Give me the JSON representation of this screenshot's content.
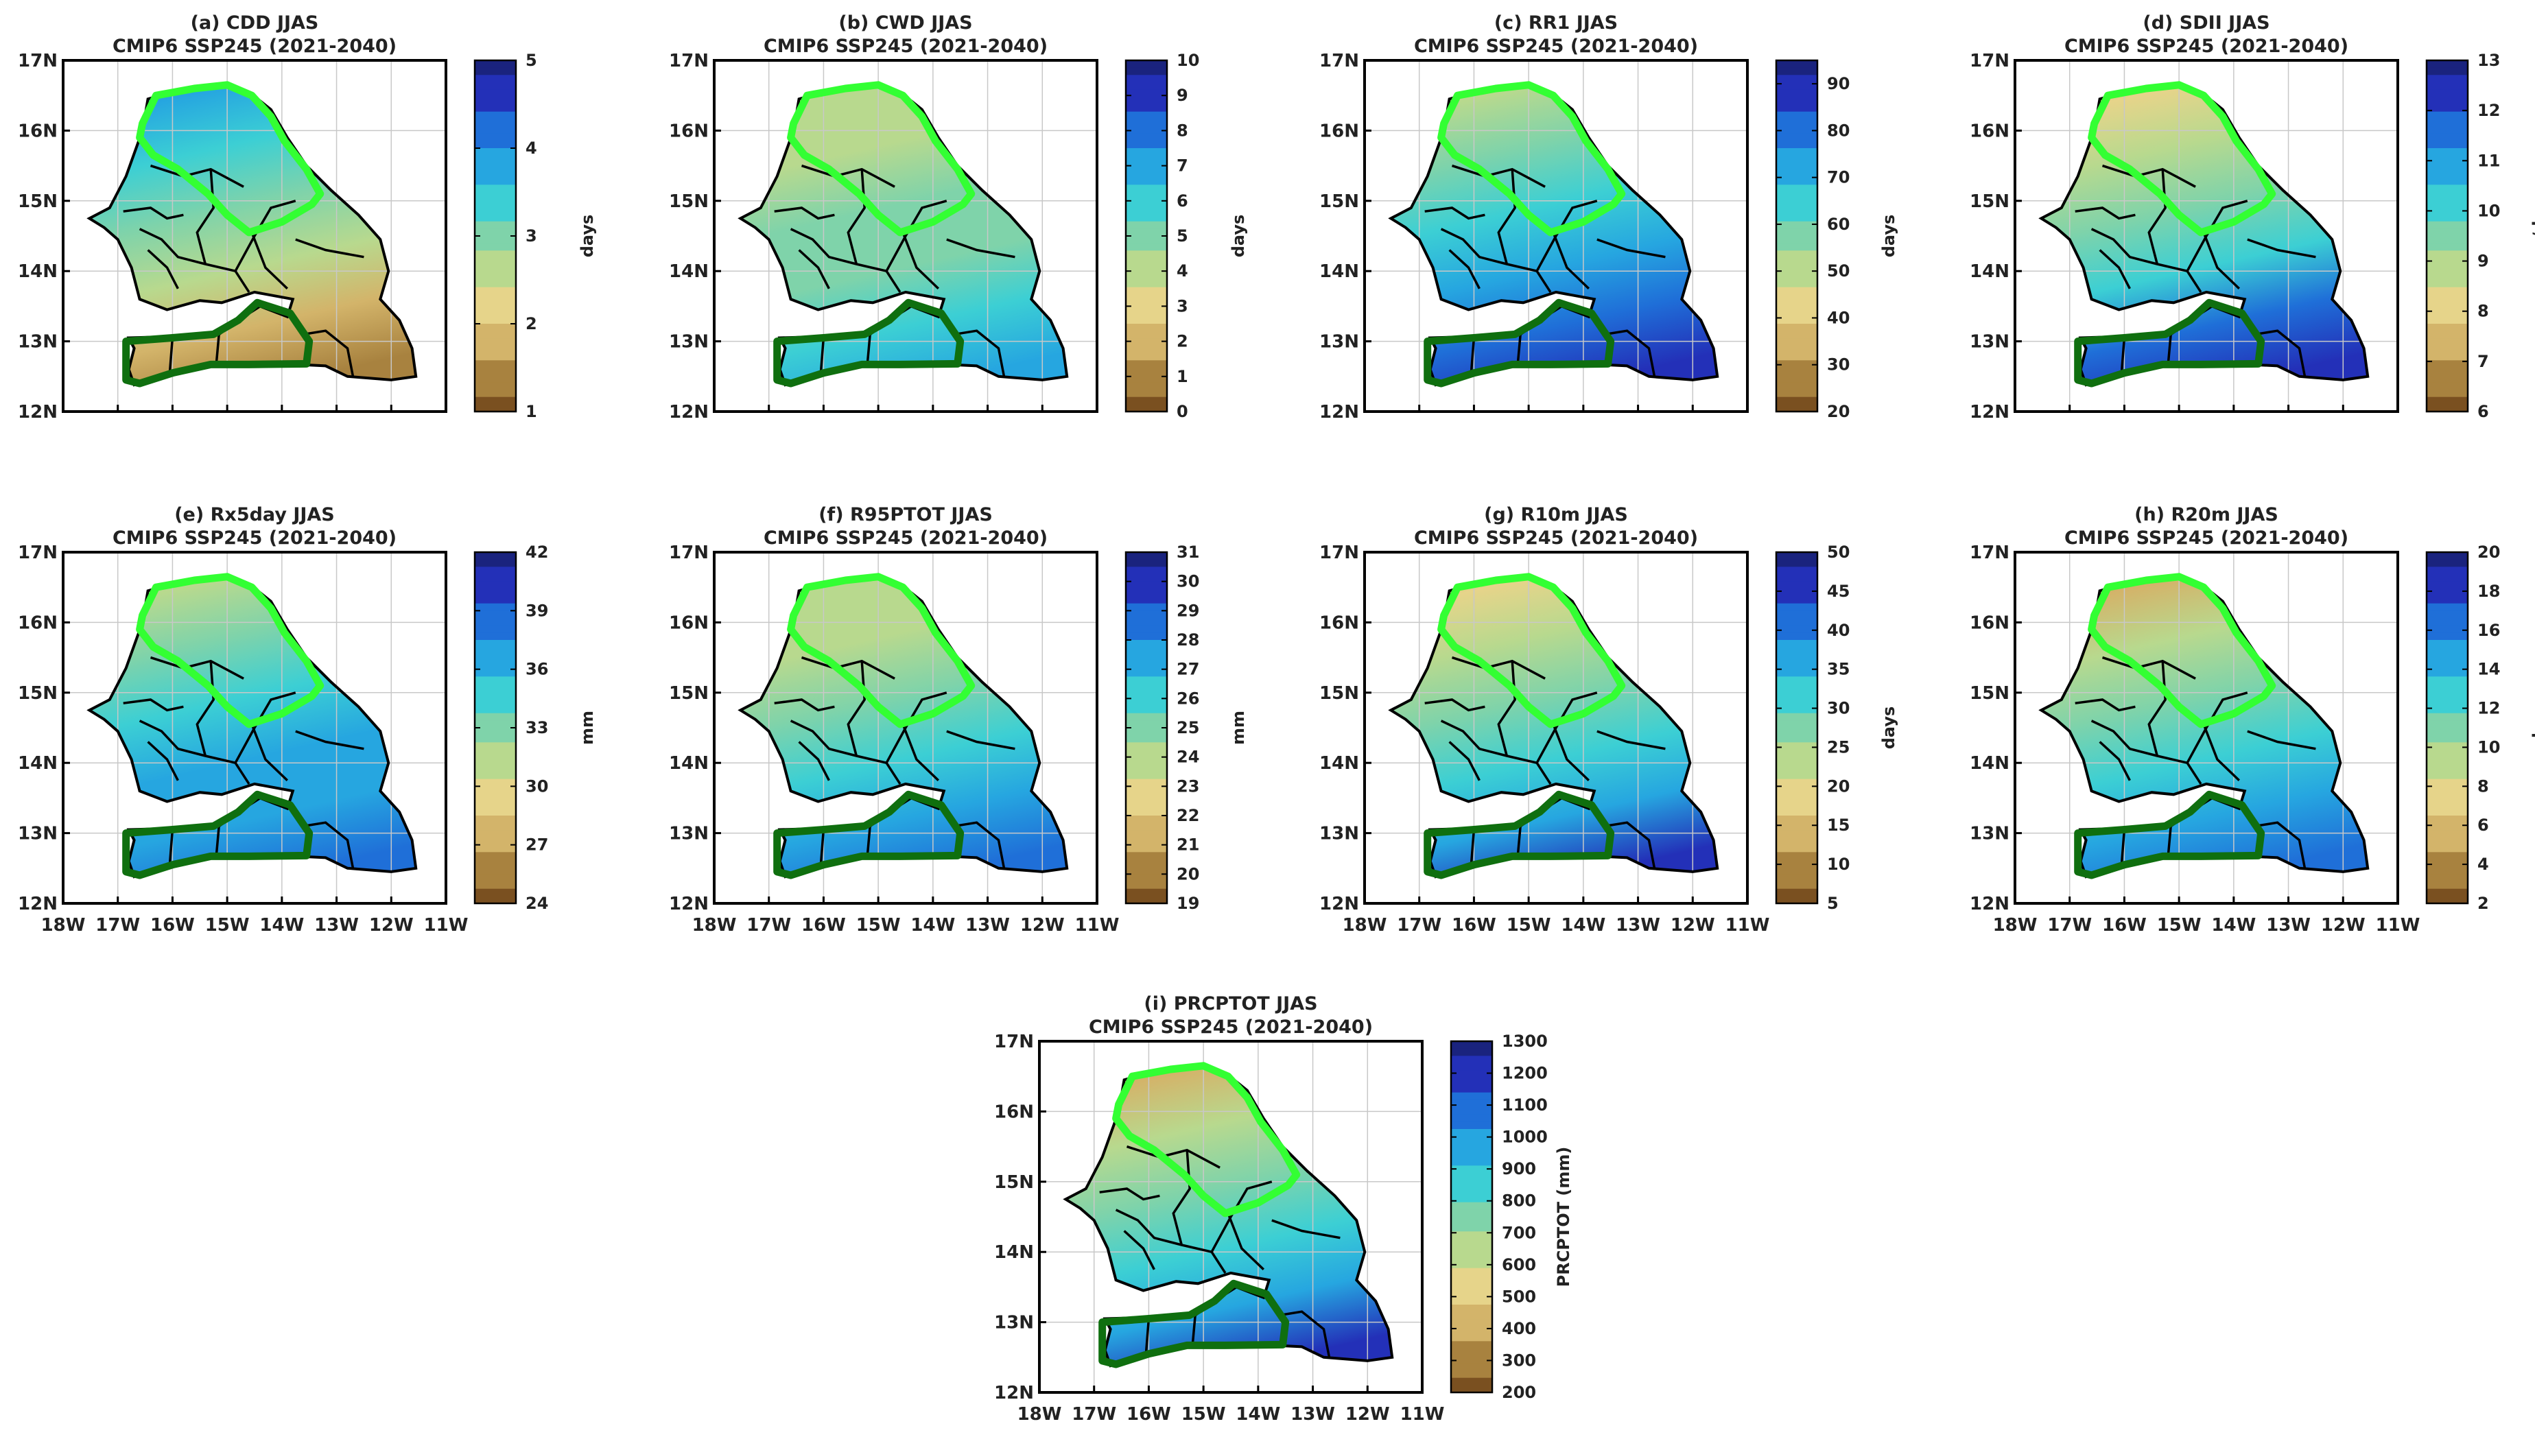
{
  "figure": {
    "subtitle": "CMIP6 SSP245 (2021-2040)",
    "lat_labels": [
      "17N",
      "16N",
      "15N",
      "14N",
      "13N",
      "12N"
    ],
    "lon_labels": [
      "18W",
      "17W",
      "16W",
      "15W",
      "14W",
      "13W",
      "12W",
      "11W"
    ],
    "colormap": [
      "#7a5020",
      "#a8823f",
      "#d3b46a",
      "#e6d48a",
      "#b8d98e",
      "#7fd3aa",
      "#3ccfd4",
      "#26a6e0",
      "#1f6fd8",
      "#2330b8",
      "#1a237e"
    ],
    "outline_colors": {
      "north_zone": "#33ff33",
      "south_zone": "#0f6f0f",
      "borders": "#000000"
    }
  },
  "chart_data": [
    {
      "type": "map",
      "id": "a",
      "title": "(a) CDD JJAS",
      "unit": "days",
      "ticks": [
        "1",
        "2",
        "3",
        "4",
        "5"
      ],
      "colorbar_range": [
        1,
        5
      ],
      "north_value": 4.4,
      "south_value": 1.4
    },
    {
      "type": "map",
      "id": "b",
      "title": "(b) CWD JJAS",
      "unit": "days",
      "ticks": [
        "0",
        "1",
        "2",
        "3",
        "4",
        "5",
        "6",
        "7",
        "8",
        "9",
        "10"
      ],
      "colorbar_range": [
        0,
        10
      ],
      "north_value": 3.0,
      "south_value": 6.5
    },
    {
      "type": "map",
      "id": "c",
      "title": "(c) RR1 JJAS",
      "unit": "days",
      "ticks": [
        "20",
        "30",
        "40",
        "50",
        "60",
        "70",
        "80",
        "90"
      ],
      "colorbar_range": [
        20,
        95
      ],
      "north_value": 45,
      "south_value": 90
    },
    {
      "type": "map",
      "id": "d",
      "title": "(d) SDII JJAS",
      "unit": "mm/day",
      "ticks": [
        "6",
        "7",
        "8",
        "9",
        "10",
        "11",
        "12",
        "13"
      ],
      "colorbar_range": [
        6,
        13
      ],
      "north_value": 7.0,
      "south_value": 12.3
    },
    {
      "type": "map",
      "id": "e",
      "title": "(e) Rx5day JJAS",
      "unit": "mm",
      "ticks": [
        "24",
        "27",
        "30",
        "33",
        "36",
        "39",
        "42"
      ],
      "colorbar_range": [
        24,
        42
      ],
      "north_value": 30.5,
      "south_value": 38.5
    },
    {
      "type": "map",
      "id": "f",
      "title": "(f) R95PTOT JJAS",
      "unit": "mm",
      "ticks": [
        "19",
        "20",
        "21",
        "22",
        "23",
        "24",
        "25",
        "26",
        "27",
        "28",
        "29",
        "30",
        "31"
      ],
      "colorbar_range": [
        19,
        31
      ],
      "north_value": 22.5,
      "south_value": 28.0
    },
    {
      "type": "map",
      "id": "g",
      "title": "(g) R10m JJAS",
      "unit": "days",
      "ticks": [
        "5",
        "10",
        "15",
        "20",
        "25",
        "30",
        "35",
        "40",
        "45",
        "50"
      ],
      "colorbar_range": [
        5,
        50
      ],
      "north_value": 11,
      "south_value": 44
    },
    {
      "type": "map",
      "id": "h",
      "title": "(h) R20m JJAS",
      "unit": "day",
      "ticks": [
        "2",
        "4",
        "6",
        "8",
        "10",
        "12",
        "14",
        "16",
        "18",
        "20"
      ],
      "colorbar_range": [
        2,
        20
      ],
      "north_value": 4.0,
      "south_value": 17.0
    },
    {
      "type": "map",
      "id": "i",
      "title": "(i) PRCPTOT JJAS",
      "unit": "PRCPTOT (mm)",
      "ticks": [
        "200",
        "300",
        "400",
        "500",
        "600",
        "700",
        "800",
        "900",
        "1000",
        "1100",
        "1200",
        "1300"
      ],
      "colorbar_range": [
        200,
        1300
      ],
      "north_value": 330,
      "south_value": 1150
    }
  ]
}
